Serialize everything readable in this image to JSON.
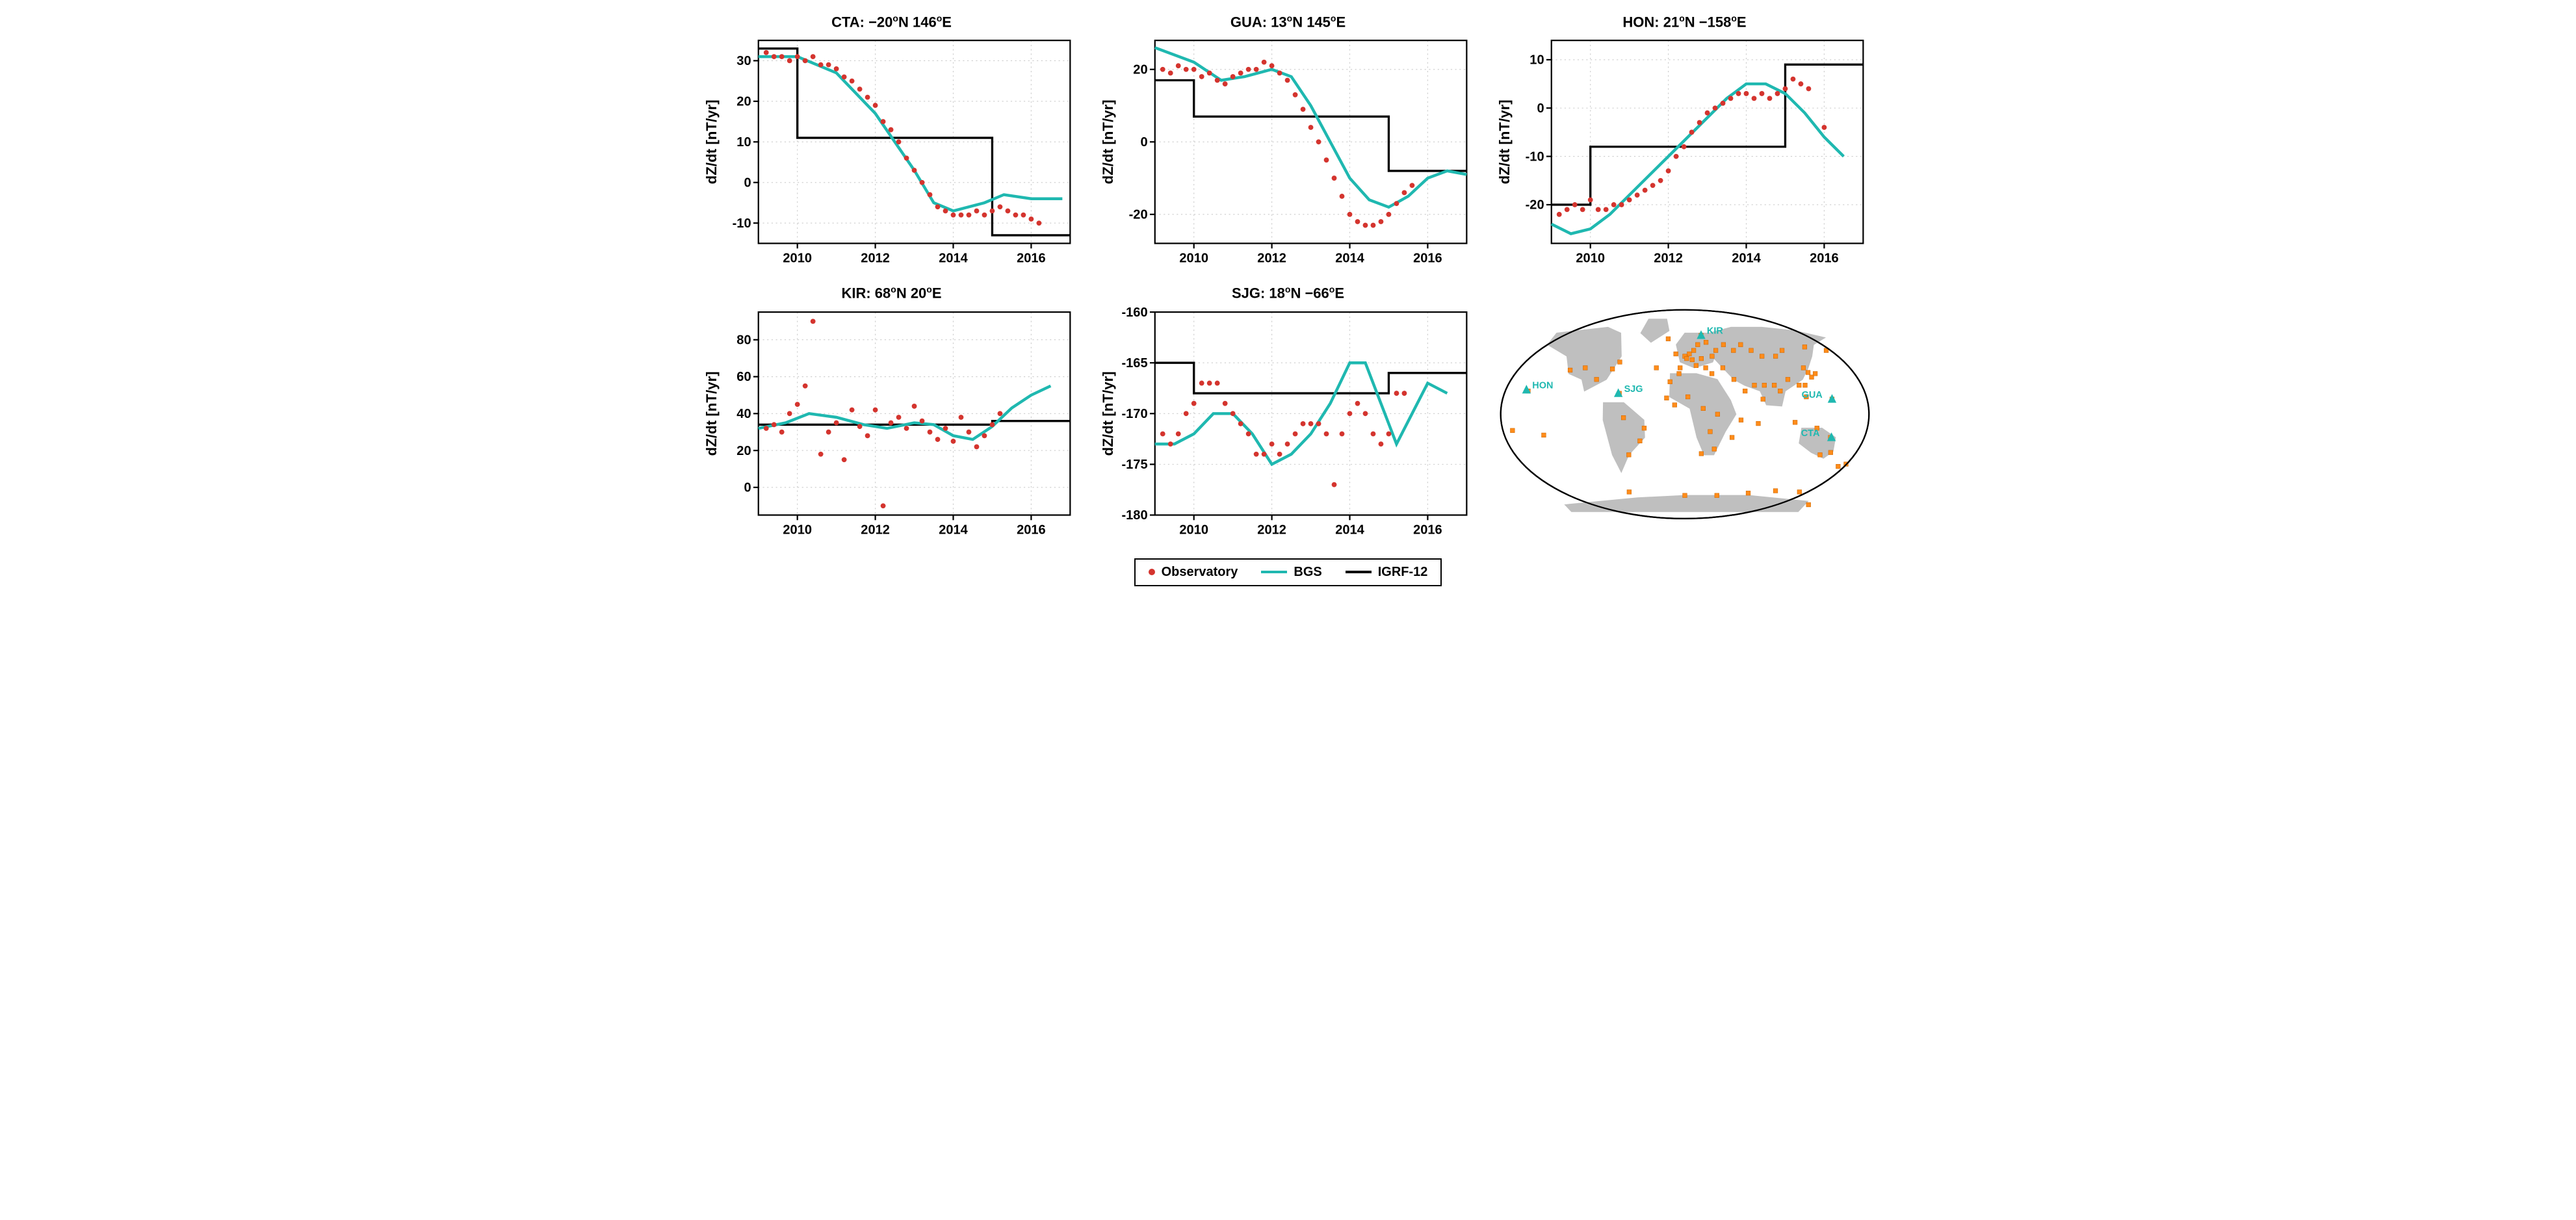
{
  "legend": {
    "observatory": "Observatory",
    "bgs": "BGS",
    "igrf": "IGRF-12"
  },
  "colors": {
    "obs": "#d4342e",
    "bgs": "#1fb8b0",
    "igrf": "#000000",
    "grid": "#cccccc",
    "bg": "#ffffff",
    "map_land": "#bfbfbf",
    "station_dot": "#ff8c1a",
    "station_tri": "#1fb8b0"
  },
  "axes": {
    "xlim": [
      2009,
      2017
    ],
    "xticks": [
      2010,
      2012,
      2014,
      2016
    ],
    "ylabel": "dZ/dt [nT/yr]",
    "title_fontsize": 22,
    "tick_fontsize": 18,
    "ylabel_fontsize": 20
  },
  "charts": [
    {
      "id": "cta",
      "title_html": "CTA: −20°N 146°E",
      "ylim": [
        -15,
        35
      ],
      "yticks": [
        -10,
        0,
        10,
        20,
        30
      ],
      "igrf": [
        [
          2009,
          33
        ],
        [
          2010,
          33
        ],
        [
          2010,
          11
        ],
        [
          2015,
          11
        ],
        [
          2015,
          -13
        ],
        [
          2017,
          -13
        ]
      ],
      "bgs": [
        [
          2009,
          31
        ],
        [
          2010,
          31
        ],
        [
          2011,
          27
        ],
        [
          2012,
          17
        ],
        [
          2013,
          3
        ],
        [
          2013.5,
          -5
        ],
        [
          2014,
          -7
        ],
        [
          2014.8,
          -5
        ],
        [
          2015.3,
          -3
        ],
        [
          2016,
          -4
        ],
        [
          2016.8,
          -4
        ]
      ],
      "obs": [
        [
          2009.2,
          32
        ],
        [
          2009.4,
          31
        ],
        [
          2009.6,
          31
        ],
        [
          2009.8,
          30
        ],
        [
          2010,
          31
        ],
        [
          2010.2,
          30
        ],
        [
          2010.4,
          31
        ],
        [
          2010.6,
          29
        ],
        [
          2010.8,
          29
        ],
        [
          2011,
          28
        ],
        [
          2011.2,
          26
        ],
        [
          2011.4,
          25
        ],
        [
          2011.6,
          23
        ],
        [
          2011.8,
          21
        ],
        [
          2012,
          19
        ],
        [
          2012.2,
          15
        ],
        [
          2012.4,
          13
        ],
        [
          2012.6,
          10
        ],
        [
          2012.8,
          6
        ],
        [
          2013,
          3
        ],
        [
          2013.2,
          0
        ],
        [
          2013.4,
          -3
        ],
        [
          2013.6,
          -6
        ],
        [
          2013.8,
          -7
        ],
        [
          2014,
          -8
        ],
        [
          2014.2,
          -8
        ],
        [
          2014.4,
          -8
        ],
        [
          2014.6,
          -7
        ],
        [
          2014.8,
          -8
        ],
        [
          2015,
          -7
        ],
        [
          2015.2,
          -6
        ],
        [
          2015.4,
          -7
        ],
        [
          2015.6,
          -8
        ],
        [
          2015.8,
          -8
        ],
        [
          2016,
          -9
        ],
        [
          2016.2,
          -10
        ]
      ]
    },
    {
      "id": "gua",
      "title_html": "GUA: 13°N 145°E",
      "ylim": [
        -28,
        28
      ],
      "yticks": [
        -20,
        0,
        20
      ],
      "igrf": [
        [
          2009,
          17
        ],
        [
          2010,
          17
        ],
        [
          2010,
          7
        ],
        [
          2015,
          7
        ],
        [
          2015,
          -8
        ],
        [
          2017,
          -8
        ]
      ],
      "bgs": [
        [
          2009,
          26
        ],
        [
          2010,
          22
        ],
        [
          2010.7,
          17
        ],
        [
          2011.3,
          18
        ],
        [
          2012,
          20
        ],
        [
          2012.5,
          18
        ],
        [
          2013,
          10
        ],
        [
          2013.5,
          0
        ],
        [
          2014,
          -10
        ],
        [
          2014.5,
          -16
        ],
        [
          2015,
          -18
        ],
        [
          2015.5,
          -15
        ],
        [
          2016,
          -10
        ],
        [
          2016.5,
          -8
        ],
        [
          2017,
          -9
        ]
      ],
      "obs": [
        [
          2009.2,
          20
        ],
        [
          2009.4,
          19
        ],
        [
          2009.6,
          21
        ],
        [
          2009.8,
          20
        ],
        [
          2010,
          20
        ],
        [
          2010.2,
          18
        ],
        [
          2010.4,
          19
        ],
        [
          2010.6,
          17
        ],
        [
          2010.8,
          16
        ],
        [
          2011,
          18
        ],
        [
          2011.2,
          19
        ],
        [
          2011.4,
          20
        ],
        [
          2011.6,
          20
        ],
        [
          2011.8,
          22
        ],
        [
          2012,
          21
        ],
        [
          2012.2,
          19
        ],
        [
          2012.4,
          17
        ],
        [
          2012.6,
          13
        ],
        [
          2012.8,
          9
        ],
        [
          2013,
          4
        ],
        [
          2013.2,
          0
        ],
        [
          2013.4,
          -5
        ],
        [
          2013.6,
          -10
        ],
        [
          2013.8,
          -15
        ],
        [
          2014,
          -20
        ],
        [
          2014.2,
          -22
        ],
        [
          2014.4,
          -23
        ],
        [
          2014.6,
          -23
        ],
        [
          2014.8,
          -22
        ],
        [
          2015,
          -20
        ],
        [
          2015.2,
          -17
        ],
        [
          2015.4,
          -14
        ],
        [
          2015.6,
          -12
        ]
      ]
    },
    {
      "id": "hon",
      "title_html": "HON: 21°N −158°E",
      "ylim": [
        -28,
        14
      ],
      "yticks": [
        -20,
        -10,
        0,
        10
      ],
      "igrf": [
        [
          2009,
          -20
        ],
        [
          2010,
          -20
        ],
        [
          2010,
          -8
        ],
        [
          2015,
          -8
        ],
        [
          2015,
          9
        ],
        [
          2017,
          9
        ]
      ],
      "bgs": [
        [
          2009,
          -24
        ],
        [
          2009.5,
          -26
        ],
        [
          2010,
          -25
        ],
        [
          2010.5,
          -22
        ],
        [
          2011,
          -18
        ],
        [
          2011.5,
          -14
        ],
        [
          2012,
          -10
        ],
        [
          2012.5,
          -6
        ],
        [
          2013,
          -2
        ],
        [
          2013.5,
          2
        ],
        [
          2014,
          5
        ],
        [
          2014.5,
          5
        ],
        [
          2015,
          3
        ],
        [
          2015.5,
          -1
        ],
        [
          2016,
          -6
        ],
        [
          2016.5,
          -10
        ]
      ],
      "obs": [
        [
          2009.2,
          -22
        ],
        [
          2009.4,
          -21
        ],
        [
          2009.6,
          -20
        ],
        [
          2009.8,
          -21
        ],
        [
          2010,
          -19
        ],
        [
          2010.2,
          -21
        ],
        [
          2010.4,
          -21
        ],
        [
          2010.6,
          -20
        ],
        [
          2010.8,
          -20
        ],
        [
          2011,
          -19
        ],
        [
          2011.2,
          -18
        ],
        [
          2011.4,
          -17
        ],
        [
          2011.6,
          -16
        ],
        [
          2011.8,
          -15
        ],
        [
          2012,
          -13
        ],
        [
          2012.2,
          -10
        ],
        [
          2012.4,
          -8
        ],
        [
          2012.6,
          -5
        ],
        [
          2012.8,
          -3
        ],
        [
          2013,
          -1
        ],
        [
          2013.2,
          0
        ],
        [
          2013.4,
          1
        ],
        [
          2013.6,
          2
        ],
        [
          2013.8,
          3
        ],
        [
          2014,
          3
        ],
        [
          2014.2,
          2
        ],
        [
          2014.4,
          3
        ],
        [
          2014.6,
          2
        ],
        [
          2014.8,
          3
        ],
        [
          2015,
          4
        ],
        [
          2015.2,
          6
        ],
        [
          2015.4,
          5
        ],
        [
          2015.6,
          4
        ],
        [
          2016,
          -4
        ]
      ]
    },
    {
      "id": "kir",
      "title_html": "KIR: 68°N 20°E",
      "ylim": [
        -15,
        95
      ],
      "yticks": [
        0,
        20,
        40,
        60,
        80
      ],
      "igrf": [
        [
          2009,
          34
        ],
        [
          2010,
          34
        ],
        [
          2010,
          34
        ],
        [
          2015,
          34
        ],
        [
          2015,
          36
        ],
        [
          2017,
          36
        ]
      ],
      "bgs": [
        [
          2009,
          32
        ],
        [
          2009.7,
          35
        ],
        [
          2010.3,
          40
        ],
        [
          2011,
          38
        ],
        [
          2011.7,
          34
        ],
        [
          2012.3,
          32
        ],
        [
          2013,
          35
        ],
        [
          2013.5,
          34
        ],
        [
          2014,
          28
        ],
        [
          2014.5,
          26
        ],
        [
          2015,
          33
        ],
        [
          2015.5,
          43
        ],
        [
          2016,
          50
        ],
        [
          2016.5,
          55
        ]
      ],
      "obs": [
        [
          2009.2,
          32
        ],
        [
          2009.4,
          34
        ],
        [
          2009.6,
          30
        ],
        [
          2009.8,
          40
        ],
        [
          2010,
          45
        ],
        [
          2010.2,
          55
        ],
        [
          2010.4,
          90
        ],
        [
          2010.6,
          18
        ],
        [
          2010.8,
          30
        ],
        [
          2011,
          35
        ],
        [
          2011.2,
          15
        ],
        [
          2011.4,
          42
        ],
        [
          2011.6,
          33
        ],
        [
          2011.8,
          28
        ],
        [
          2012,
          42
        ],
        [
          2012.2,
          -10
        ],
        [
          2012.4,
          35
        ],
        [
          2012.6,
          38
        ],
        [
          2012.8,
          32
        ],
        [
          2013,
          44
        ],
        [
          2013.2,
          36
        ],
        [
          2013.4,
          30
        ],
        [
          2013.6,
          26
        ],
        [
          2013.8,
          32
        ],
        [
          2014,
          25
        ],
        [
          2014.2,
          38
        ],
        [
          2014.4,
          30
        ],
        [
          2014.6,
          22
        ],
        [
          2014.8,
          28
        ],
        [
          2015,
          34
        ],
        [
          2015.2,
          40
        ]
      ]
    },
    {
      "id": "sjg",
      "title_html": "SJG: 18°N −66°E",
      "ylim": [
        -180,
        -160
      ],
      "yticks": [
        -180,
        -175,
        -170,
        -165,
        -160
      ],
      "igrf": [
        [
          2009,
          -165
        ],
        [
          2010,
          -165
        ],
        [
          2010,
          -168
        ],
        [
          2015,
          -168
        ],
        [
          2015,
          -166
        ],
        [
          2017,
          -166
        ]
      ],
      "bgs": [
        [
          2009,
          -173
        ],
        [
          2009.5,
          -173
        ],
        [
          2010,
          -172
        ],
        [
          2010.5,
          -170
        ],
        [
          2011,
          -170
        ],
        [
          2011.5,
          -172
        ],
        [
          2012,
          -175
        ],
        [
          2012.5,
          -174
        ],
        [
          2013,
          -172
        ],
        [
          2013.5,
          -169
        ],
        [
          2014,
          -165
        ],
        [
          2014.4,
          -165
        ],
        [
          2014.8,
          -169
        ],
        [
          2015.2,
          -173
        ],
        [
          2015.6,
          -170
        ],
        [
          2016,
          -167
        ],
        [
          2016.5,
          -168
        ]
      ],
      "obs": [
        [
          2009.2,
          -172
        ],
        [
          2009.4,
          -173
        ],
        [
          2009.6,
          -172
        ],
        [
          2009.8,
          -170
        ],
        [
          2010,
          -169
        ],
        [
          2010.2,
          -167
        ],
        [
          2010.4,
          -167
        ],
        [
          2010.6,
          -167
        ],
        [
          2010.8,
          -169
        ],
        [
          2011,
          -170
        ],
        [
          2011.2,
          -171
        ],
        [
          2011.4,
          -172
        ],
        [
          2011.6,
          -174
        ],
        [
          2011.8,
          -174
        ],
        [
          2012,
          -173
        ],
        [
          2012.2,
          -174
        ],
        [
          2012.4,
          -173
        ],
        [
          2012.6,
          -172
        ],
        [
          2012.8,
          -171
        ],
        [
          2013,
          -171
        ],
        [
          2013.2,
          -171
        ],
        [
          2013.4,
          -172
        ],
        [
          2013.6,
          -177
        ],
        [
          2013.8,
          -172
        ],
        [
          2014,
          -170
        ],
        [
          2014.2,
          -169
        ],
        [
          2014.4,
          -170
        ],
        [
          2014.6,
          -172
        ],
        [
          2014.8,
          -173
        ],
        [
          2015,
          -172
        ],
        [
          2015.2,
          -168
        ],
        [
          2015.4,
          -168
        ]
      ]
    }
  ],
  "map": {
    "featured_stations": [
      {
        "code": "HON",
        "lon": -158,
        "lat": 21
      },
      {
        "code": "SJG",
        "lon": -66,
        "lat": 18
      },
      {
        "code": "KIR",
        "lon": 20,
        "lat": 68
      },
      {
        "code": "GUA",
        "lon": 145,
        "lat": 13
      },
      {
        "code": "CTA",
        "lon": 146,
        "lat": -20
      }
    ],
    "stations": [
      [
        -156,
        20
      ],
      [
        -120,
        38
      ],
      [
        -105,
        40
      ],
      [
        -90,
        30
      ],
      [
        -76,
        39
      ],
      [
        -70,
        45
      ],
      [
        -65,
        18
      ],
      [
        -60,
        -3
      ],
      [
        -58,
        -35
      ],
      [
        -45,
        -23
      ],
      [
        -40,
        -12
      ],
      [
        -30,
        40
      ],
      [
        -20,
        65
      ],
      [
        -15,
        28
      ],
      [
        -10,
        52
      ],
      [
        -5,
        40
      ],
      [
        0,
        50
      ],
      [
        2,
        48
      ],
      [
        5,
        52
      ],
      [
        8,
        47
      ],
      [
        10,
        55
      ],
      [
        12,
        42
      ],
      [
        15,
        60
      ],
      [
        18,
        48
      ],
      [
        20,
        68
      ],
      [
        22,
        40
      ],
      [
        25,
        62
      ],
      [
        28,
        35
      ],
      [
        30,
        50
      ],
      [
        30,
        -30
      ],
      [
        35,
        55
      ],
      [
        40,
        40
      ],
      [
        45,
        60
      ],
      [
        50,
        30
      ],
      [
        55,
        55
      ],
      [
        60,
        20
      ],
      [
        65,
        60
      ],
      [
        70,
        25
      ],
      [
        72,
        -8
      ],
      [
        75,
        55
      ],
      [
        77,
        13
      ],
      [
        80,
        25
      ],
      [
        85,
        50
      ],
      [
        90,
        25
      ],
      [
        95,
        20
      ],
      [
        100,
        50
      ],
      [
        105,
        30
      ],
      [
        108,
        -7
      ],
      [
        110,
        55
      ],
      [
        115,
        25
      ],
      [
        120,
        15
      ],
      [
        121,
        25
      ],
      [
        125,
        40
      ],
      [
        128,
        36
      ],
      [
        130,
        -12
      ],
      [
        130,
        32
      ],
      [
        135,
        35
      ],
      [
        138,
        58
      ],
      [
        140,
        -35
      ],
      [
        145,
        -20
      ],
      [
        145,
        13
      ],
      [
        150,
        -33
      ],
      [
        160,
        55
      ],
      [
        165,
        -45
      ],
      [
        172,
        -43
      ],
      [
        -170,
        -14
      ],
      [
        -140,
        -18
      ],
      [
        -68,
        -67
      ],
      [
        0,
        -70
      ],
      [
        40,
        -70
      ],
      [
        78,
        -68
      ],
      [
        110,
        -66
      ],
      [
        140,
        -67
      ],
      [
        165,
        -78
      ],
      [
        -10,
        8
      ],
      [
        3,
        15
      ],
      [
        18,
        5
      ],
      [
        25,
        -15
      ],
      [
        32,
        0
      ],
      [
        17,
        -34
      ],
      [
        -18,
        14
      ],
      [
        -6,
        35
      ],
      [
        47,
        -20
      ],
      [
        55,
        -5
      ]
    ]
  }
}
